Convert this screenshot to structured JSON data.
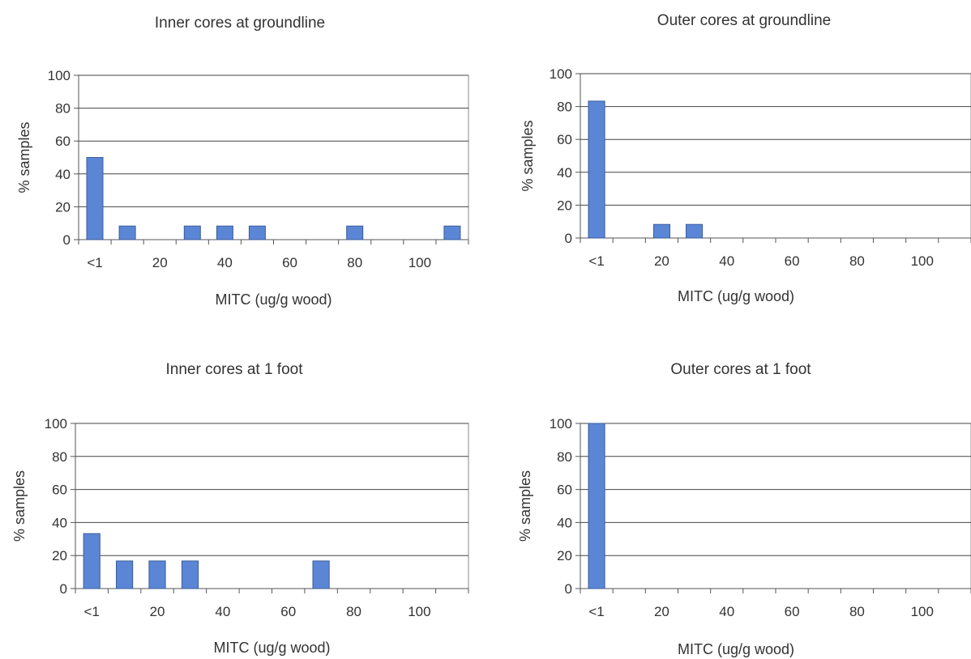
{
  "chart_data": [
    {
      "type": "bar",
      "title": "Inner cores at groundline",
      "xlabel": "MITC (ug/g wood)",
      "ylabel": "% samples",
      "ylim": [
        0,
        100
      ],
      "yticks": [
        0,
        20,
        40,
        60,
        80,
        100
      ],
      "xtick_labels": [
        "<1",
        "20",
        "40",
        "60",
        "80",
        "100"
      ],
      "grid": true,
      "categories": [
        "<1",
        "10",
        "20",
        "30",
        "40",
        "50",
        "60",
        "70",
        "80",
        "90",
        "100",
        "110"
      ],
      "values": [
        50,
        8.3,
        0,
        8.3,
        8.3,
        8.3,
        0,
        0,
        8.3,
        0,
        0,
        8.3
      ],
      "bar_color": "#5b86d6"
    },
    {
      "type": "bar",
      "title": "Outer cores at groundline",
      "xlabel": "MITC (ug/g wood)",
      "ylabel": "% samples",
      "ylim": [
        0,
        100
      ],
      "yticks": [
        0,
        20,
        40,
        60,
        80,
        100
      ],
      "xtick_labels": [
        "<1",
        "20",
        "40",
        "60",
        "80",
        "100"
      ],
      "grid": true,
      "categories": [
        "<1",
        "10",
        "20",
        "30",
        "40",
        "50",
        "60",
        "70",
        "80",
        "90",
        "100",
        "110"
      ],
      "values": [
        83.3,
        0,
        8.3,
        8.3,
        0,
        0,
        0,
        0,
        0,
        0,
        0,
        0
      ],
      "bar_color": "#5b86d6"
    },
    {
      "type": "bar",
      "title": "Inner cores at 1 foot",
      "xlabel": "MITC (ug/g wood)",
      "ylabel": "% samples",
      "ylim": [
        0,
        100
      ],
      "yticks": [
        0,
        20,
        40,
        60,
        80,
        100
      ],
      "xtick_labels": [
        "<1",
        "20",
        "40",
        "60",
        "80",
        "100"
      ],
      "grid": true,
      "categories": [
        "<1",
        "10",
        "20",
        "30",
        "40",
        "50",
        "60",
        "70",
        "80",
        "90",
        "100",
        "110"
      ],
      "values": [
        33.3,
        16.7,
        16.7,
        16.7,
        0,
        0,
        0,
        16.7,
        0,
        0,
        0,
        0
      ],
      "bar_color": "#5b86d6"
    },
    {
      "type": "bar",
      "title": "Outer cores at 1 foot",
      "xlabel": "MITC (ug/g wood)",
      "ylabel": "% samples",
      "ylim": [
        0,
        100
      ],
      "yticks": [
        0,
        20,
        40,
        60,
        80,
        100
      ],
      "xtick_labels": [
        "<1",
        "20",
        "40",
        "60",
        "80",
        "100"
      ],
      "grid": true,
      "categories": [
        "<1",
        "10",
        "20",
        "30",
        "40",
        "50",
        "60",
        "70",
        "80",
        "90",
        "100",
        "110"
      ],
      "values": [
        100,
        0,
        0,
        0,
        0,
        0,
        0,
        0,
        0,
        0,
        0,
        0
      ],
      "bar_color": "#5b86d6"
    }
  ]
}
